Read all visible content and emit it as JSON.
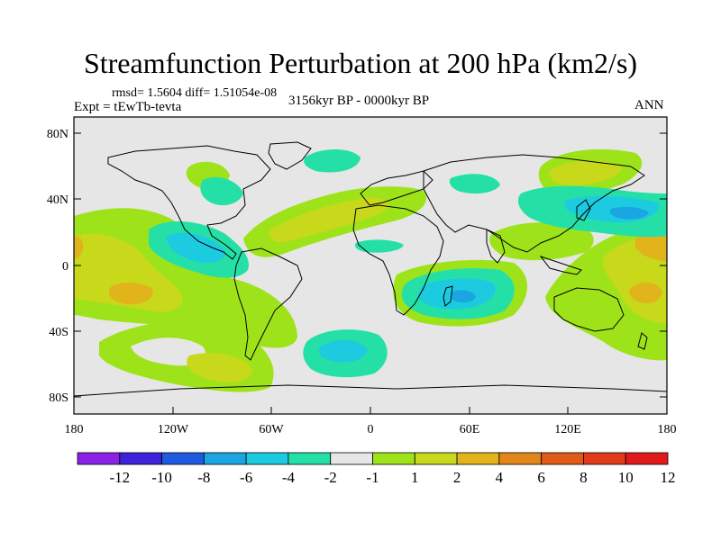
{
  "title": "Streamfunction Perturbation at 200 hPa (km2/s)",
  "stats_line": "rmsd= 1.5604 diff= 1.51054e-08",
  "experiment_line": "Expt = tEwTb-tevta",
  "period_line": "3156kyr BP - 0000kyr BP",
  "season": "ANN",
  "lat_labels": [
    "80N",
    "40N",
    "0",
    "40S",
    "80S"
  ],
  "lon_labels": [
    "180",
    "120W",
    "60W",
    "0",
    "60E",
    "120E",
    "180"
  ],
  "colorbar": {
    "labels": [
      "-12",
      "-10",
      "-8",
      "-6",
      "-4",
      "-2",
      "-1",
      "1",
      "2",
      "4",
      "6",
      "8",
      "10",
      "12"
    ],
    "colors": [
      "#8a22e6",
      "#3c22d8",
      "#1f5ae0",
      "#1aa6e0",
      "#1ccbe0",
      "#24e0a6",
      "#e6e6e6",
      "#9ee31a",
      "#c8d81a",
      "#e0b41a",
      "#e0861a",
      "#e05a1a",
      "#e03a1a",
      "#e01a1a"
    ]
  },
  "anomaly_regions": [
    {
      "name": "n-pacific-east-positive",
      "level": "1",
      "lon": -160,
      "lat": 10
    },
    {
      "name": "central-pacific-positive",
      "level": "4",
      "lon": -150,
      "lat": -15
    },
    {
      "name": "tropical-atlantic-negative",
      "level": "-2",
      "lon": -100,
      "lat": 15
    },
    {
      "name": "n-atlantic-positive",
      "level": "2",
      "lon": -20,
      "lat": 35
    },
    {
      "name": "south-indian-negative",
      "level": "-4",
      "lon": 45,
      "lat": -20
    },
    {
      "name": "nw-pacific-negative",
      "level": "-4",
      "lon": 150,
      "lat": 30
    },
    {
      "name": "sw-pacific-positive",
      "level": "4",
      "lon": 160,
      "lat": 0
    },
    {
      "name": "south-pacific-positive",
      "level": "2",
      "lon": -90,
      "lat": -45
    },
    {
      "name": "south-atlantic-negative",
      "level": "-4",
      "lon": -15,
      "lat": -45
    }
  ]
}
